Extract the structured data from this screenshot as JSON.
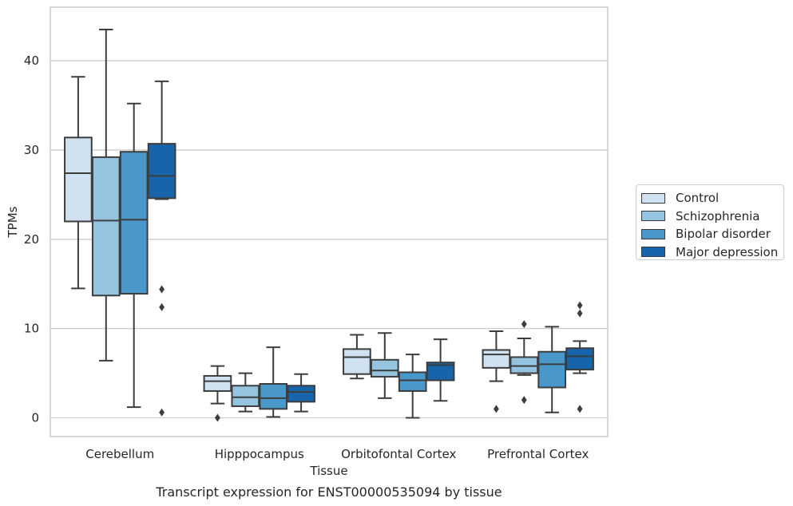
{
  "chart_data": {
    "type": "box",
    "title": "Transcript expression for ENST00000535094 by tissue",
    "xlabel": "Tissue",
    "ylabel": "TPMs",
    "ylim": [
      -2.1,
      46
    ],
    "yticks": [
      0,
      10,
      20,
      30,
      40
    ],
    "grid": "horizontal",
    "legend_placement": "center-right, outside",
    "categories": [
      "Cerebellum",
      "Hipppocampus",
      "Orbitofontal Cortex",
      "Prefrontal Cortex"
    ],
    "series": [
      {
        "name": "Control",
        "color": "#d0e1f2",
        "boxes": [
          {
            "whislo": 14.5,
            "q1": 22.0,
            "med": 27.4,
            "q3": 31.4,
            "whishi": 38.2,
            "fliers": []
          },
          {
            "whislo": 1.6,
            "q1": 3.0,
            "med": 4.1,
            "q3": 4.7,
            "whishi": 5.8,
            "fliers": [
              0.0
            ]
          },
          {
            "whislo": 4.4,
            "q1": 4.9,
            "med": 6.8,
            "q3": 7.7,
            "whishi": 9.3,
            "fliers": []
          },
          {
            "whislo": 4.1,
            "q1": 5.6,
            "med": 7.1,
            "q3": 7.6,
            "whishi": 9.7,
            "fliers": [
              1.0
            ]
          }
        ]
      },
      {
        "name": "Schizophrenia",
        "color": "#94c4df",
        "boxes": [
          {
            "whislo": 6.4,
            "q1": 13.7,
            "med": 22.1,
            "q3": 29.2,
            "whishi": 43.5,
            "fliers": []
          },
          {
            "whislo": 0.7,
            "q1": 1.3,
            "med": 2.3,
            "q3": 3.6,
            "whishi": 5.0,
            "fliers": []
          },
          {
            "whislo": 2.2,
            "q1": 4.6,
            "med": 5.3,
            "q3": 6.5,
            "whishi": 9.5,
            "fliers": []
          },
          {
            "whislo": 4.8,
            "q1": 5.0,
            "med": 5.8,
            "q3": 6.8,
            "whishi": 8.9,
            "fliers": [
              2.0,
              10.5
            ]
          }
        ]
      },
      {
        "name": "Bipolar disorder",
        "color": "#4a98c9",
        "boxes": [
          {
            "whislo": 1.2,
            "q1": 13.9,
            "med": 22.2,
            "q3": 29.8,
            "whishi": 35.2,
            "fliers": []
          },
          {
            "whislo": 0.1,
            "q1": 1.0,
            "med": 2.2,
            "q3": 3.8,
            "whishi": 7.9,
            "fliers": []
          },
          {
            "whislo": 0.0,
            "q1": 3.0,
            "med": 4.2,
            "q3": 5.1,
            "whishi": 7.1,
            "fliers": []
          },
          {
            "whislo": 0.6,
            "q1": 3.4,
            "med": 6.0,
            "q3": 7.4,
            "whishi": 10.2,
            "fliers": []
          }
        ]
      },
      {
        "name": "Major depression",
        "color": "#1764ab",
        "boxes": [
          {
            "whislo": 24.5,
            "q1": 24.6,
            "med": 27.1,
            "q3": 30.7,
            "whishi": 37.7,
            "fliers": [
              14.4,
              12.4,
              0.6
            ]
          },
          {
            "whislo": 0.7,
            "q1": 1.8,
            "med": 2.9,
            "q3": 3.6,
            "whishi": 4.9,
            "fliers": []
          },
          {
            "whislo": 1.9,
            "q1": 4.2,
            "med": 5.9,
            "q3": 6.2,
            "whishi": 8.8,
            "fliers": []
          },
          {
            "whislo": 5.0,
            "q1": 5.4,
            "med": 6.9,
            "q3": 7.8,
            "whishi": 8.6,
            "fliers": [
              1.0,
              11.7,
              12.6
            ]
          }
        ]
      }
    ]
  }
}
